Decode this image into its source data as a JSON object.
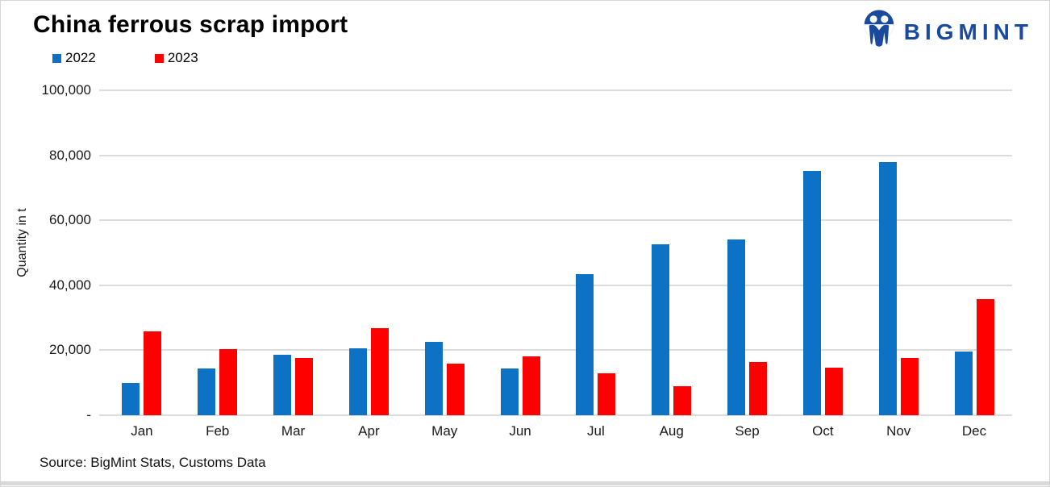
{
  "header": {
    "title": "China ferrous scrap import",
    "logo_text": "BIGMINT",
    "logo_color": "#1a4a9e"
  },
  "chart_data": {
    "type": "bar",
    "title": "China ferrous scrap import",
    "xlabel": "",
    "ylabel": "Quantity in t",
    "categories": [
      "Jan",
      "Feb",
      "Mar",
      "Apr",
      "May",
      "Jun",
      "Jul",
      "Aug",
      "Sep",
      "Oct",
      "Nov",
      "Dec"
    ],
    "series": [
      {
        "name": "2022",
        "color": "#0d72c4",
        "values": [
          10000,
          14400,
          18700,
          20500,
          22700,
          14500,
          43500,
          52500,
          54100,
          75200,
          77900,
          19700
        ]
      },
      {
        "name": "2023",
        "color": "#ff0000",
        "values": [
          25800,
          20300,
          17600,
          26700,
          15900,
          18200,
          12800,
          8900,
          16300,
          14700,
          17500,
          35700
        ]
      }
    ],
    "ylim": [
      0,
      100000
    ],
    "ytick_labels_top_to_bottom": [
      "100,000",
      "80,000",
      "60,000",
      "40,000",
      "20,000",
      "-"
    ],
    "grid": true,
    "legend_position": "top-left"
  },
  "source": "Source: BigMint Stats, Customs Data"
}
